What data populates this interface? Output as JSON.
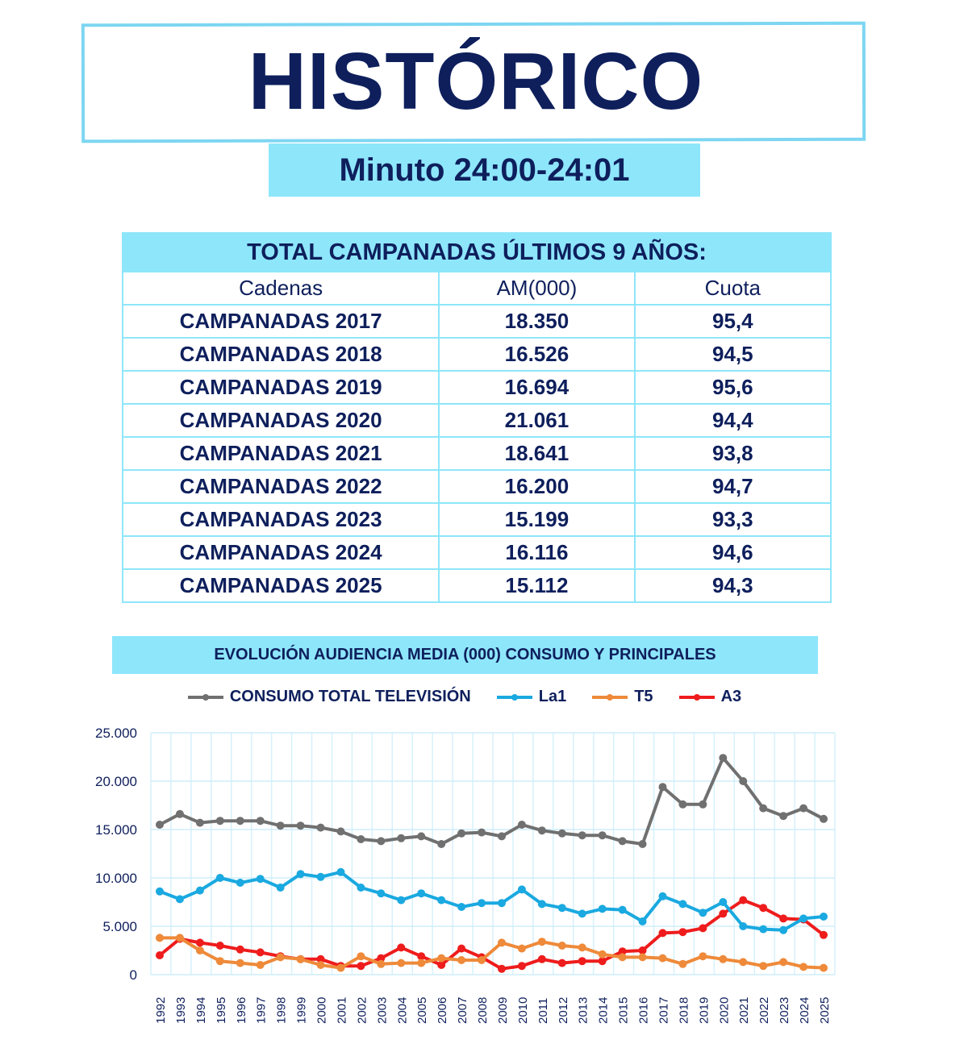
{
  "header": {
    "title": "HISTÓRICO",
    "subtitle": "Minuto 24:00-24:01"
  },
  "table": {
    "caption": "TOTAL CAMPANADAS ÚLTIMOS 9 AÑOS:",
    "columns": [
      "Cadenas",
      "AM(000)",
      "Cuota"
    ],
    "rows": [
      [
        "CAMPANADAS 2017",
        "18.350",
        "95,4"
      ],
      [
        "CAMPANADAS 2018",
        "16.526",
        "94,5"
      ],
      [
        "CAMPANADAS 2019",
        "16.694",
        "95,6"
      ],
      [
        "CAMPANADAS 2020",
        "21.061",
        "94,4"
      ],
      [
        "CAMPANADAS 2021",
        "18.641",
        "93,8"
      ],
      [
        "CAMPANADAS 2022",
        "16.200",
        "94,7"
      ],
      [
        "CAMPANADAS 2023",
        "15.199",
        "93,3"
      ],
      [
        "CAMPANADAS 2024",
        "16.116",
        "94,6"
      ],
      [
        "CAMPANADAS 2025",
        "15.112",
        "94,3"
      ]
    ]
  },
  "chart_data": {
    "type": "line",
    "title": "EVOLUCIÓN AUDIENCIA MEDIA (000) CONSUMO Y PRINCIPALES",
    "legend_position": "top",
    "grid": true,
    "ylim": [
      0,
      25000
    ],
    "yticks": [
      "0",
      "5.000",
      "10.000",
      "15.000",
      "20.000",
      "25.000"
    ],
    "x": [
      "1992",
      "1993",
      "1994",
      "1995",
      "1996",
      "1997",
      "1998",
      "1999",
      "2000",
      "2001",
      "2002",
      "2003",
      "2004",
      "2005",
      "2006",
      "2007",
      "2008",
      "2009",
      "2010",
      "2011",
      "2012",
      "2013",
      "2014",
      "2015",
      "2016",
      "2017",
      "2018",
      "2019",
      "2020",
      "2021",
      "2022",
      "2023",
      "2024",
      "2025"
    ],
    "series": [
      {
        "name": "CONSUMO TOTAL TELEVISIÓN",
        "color": "#707070",
        "values": [
          15500,
          16600,
          15700,
          15900,
          15900,
          15900,
          15400,
          15400,
          15200,
          14800,
          14000,
          13800,
          14100,
          14300,
          13500,
          14600,
          14700,
          14300,
          15500,
          14900,
          14600,
          14400,
          14400,
          13800,
          13500,
          19400,
          17600,
          17600,
          22400,
          20000,
          17200,
          16400,
          17200,
          16100
        ]
      },
      {
        "name": "La1",
        "color": "#1aa9e0",
        "values": [
          8600,
          7800,
          8700,
          10000,
          9500,
          9900,
          9000,
          10400,
          10100,
          10600,
          9000,
          8400,
          7700,
          8400,
          7700,
          7000,
          7400,
          7400,
          8800,
          7300,
          6900,
          6300,
          6800,
          6700,
          5500,
          8100,
          7300,
          6400,
          7500,
          5000,
          4700,
          4600,
          5800,
          6000
        ]
      },
      {
        "name": "T5",
        "color": "#ee8a3a",
        "values": [
          3800,
          3800,
          2500,
          1400,
          1200,
          1000,
          1800,
          1600,
          1000,
          700,
          1900,
          1100,
          1200,
          1200,
          1700,
          1500,
          1500,
          3300,
          2700,
          3400,
          3000,
          2800,
          2100,
          1800,
          1800,
          1700,
          1100,
          1900,
          1600,
          1300,
          900,
          1300,
          800,
          700
        ]
      },
      {
        "name": "A3",
        "color": "#ee1c1c",
        "values": [
          2000,
          3700,
          3300,
          3000,
          2600,
          2300,
          1900,
          1600,
          1600,
          900,
          900,
          1700,
          2800,
          1900,
          1000,
          2700,
          1800,
          600,
          900,
          1600,
          1200,
          1400,
          1400,
          2400,
          2500,
          4300,
          4400,
          4800,
          6300,
          7700,
          6900,
          5800,
          5700,
          4100
        ]
      }
    ]
  }
}
